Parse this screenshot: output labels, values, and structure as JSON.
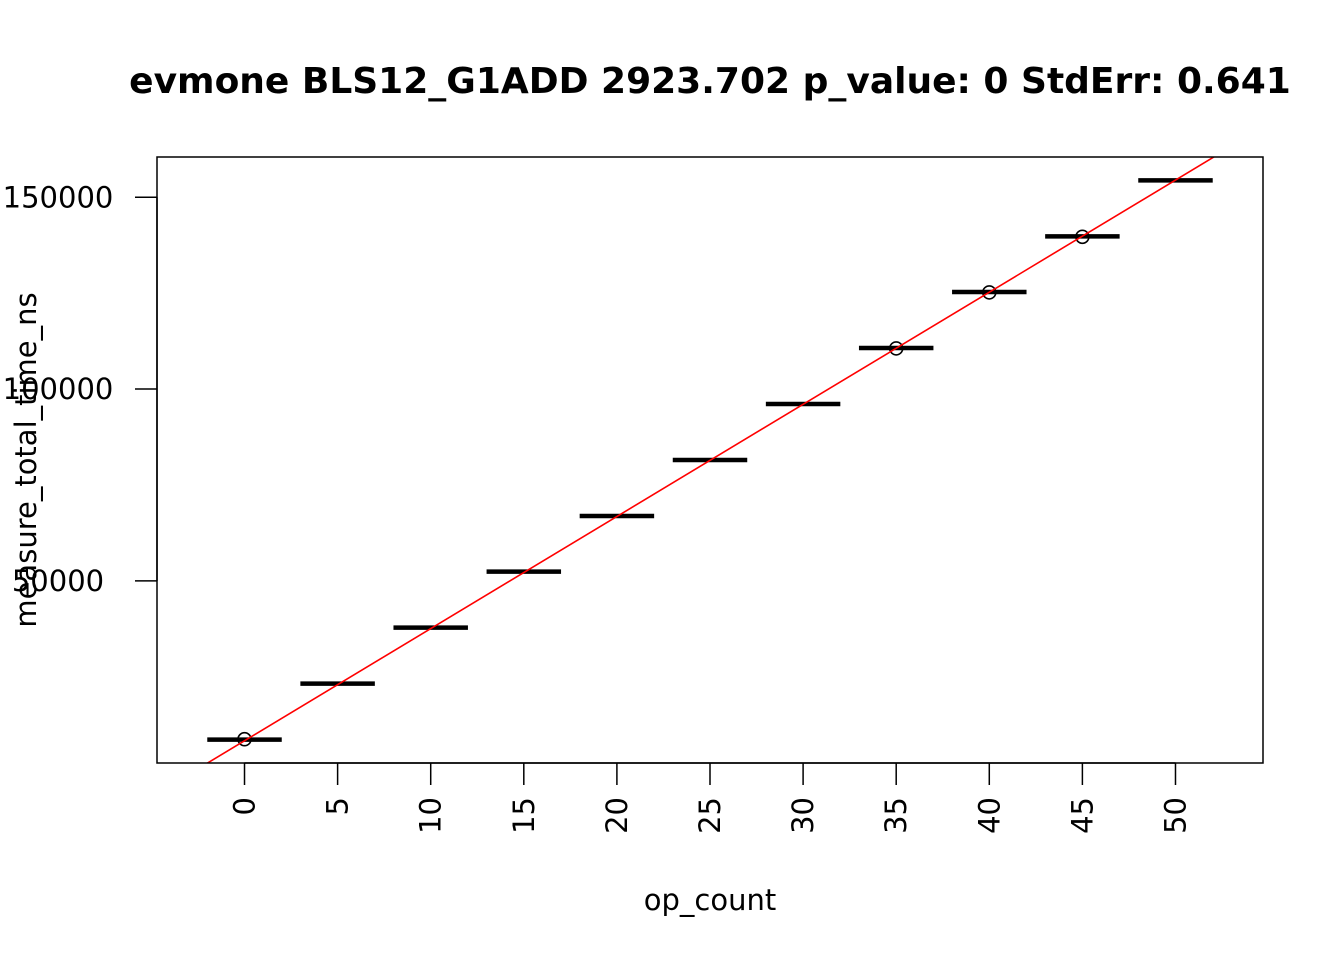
{
  "chart_data": {
    "type": "scatter",
    "title": "evmone BLS12_G1ADD 2923.702 p_value: 0 StdErr: 0.641",
    "xlabel": "op_count",
    "ylabel": "measure_total_time_ns",
    "xlim": [
      -4.7,
      54.7
    ],
    "ylim": [
      2500,
      160500
    ],
    "x_ticks": [
      0,
      5,
      10,
      15,
      20,
      25,
      30,
      35,
      40,
      45,
      50
    ],
    "y_ticks": [
      50000,
      100000,
      150000
    ],
    "y_tick_labels": [
      "50000",
      "100000",
      "150000"
    ],
    "box_width": 4,
    "groups": [
      {
        "x": 0,
        "median": 8600
      },
      {
        "x": 5,
        "median": 23200
      },
      {
        "x": 10,
        "median": 37800
      },
      {
        "x": 15,
        "median": 52400
      },
      {
        "x": 20,
        "median": 66900
      },
      {
        "x": 25,
        "median": 81500
      },
      {
        "x": 30,
        "median": 96100
      },
      {
        "x": 35,
        "median": 110700
      },
      {
        "x": 40,
        "median": 125300
      },
      {
        "x": 45,
        "median": 139800
      },
      {
        "x": 50,
        "median": 154400
      }
    ],
    "outliers": [
      {
        "x": 0,
        "y": 8700
      },
      {
        "x": 35,
        "y": 110600
      },
      {
        "x": 40,
        "y": 125200
      },
      {
        "x": 45,
        "y": 139700
      }
    ],
    "fit_line": {
      "slope": 2923.702,
      "intercept": 8300,
      "color": "#ff0000"
    },
    "grid": false,
    "legend": "none"
  }
}
